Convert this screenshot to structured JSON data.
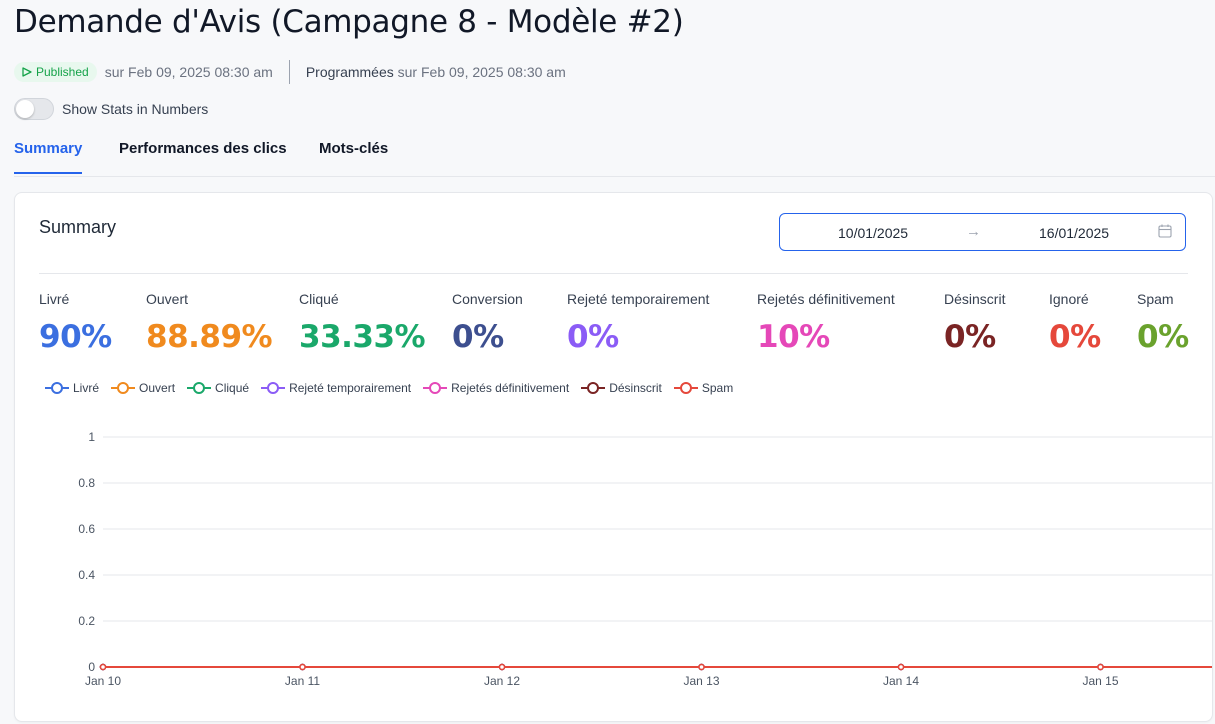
{
  "page": {
    "title": "Demande d'Avis (Campagne 8 - Modèle #2)",
    "status_badge": "Published",
    "published_date": "sur Feb 09, 2025 08:30 am",
    "scheduled_label": "Programmées",
    "scheduled_date": " sur Feb 09, 2025 08:30 am",
    "toggle_label": "Show Stats in Numbers"
  },
  "tabs": [
    {
      "label": "Summary",
      "active": true
    },
    {
      "label": "Performances des clics",
      "active": false
    },
    {
      "label": "Mots-clés",
      "active": false
    }
  ],
  "summary": {
    "title": "Summary",
    "date_start": "10/01/2025",
    "date_end": "16/01/2025",
    "stats": [
      {
        "label": "Livré",
        "value": "90%",
        "color": "#3b6fe0"
      },
      {
        "label": "Ouvert",
        "value": "88.89%",
        "color": "#f08a1e"
      },
      {
        "label": "Cliqué",
        "value": "33.33%",
        "color": "#1aa86a"
      },
      {
        "label": "Conversion",
        "value": "0%",
        "color": "#3d4f8f"
      },
      {
        "label": "Rejeté temporairement",
        "value": "0%",
        "color": "#8b5cf6"
      },
      {
        "label": "Rejetés définitivement",
        "value": "10%",
        "color": "#e548b8"
      },
      {
        "label": "Désinscrit",
        "value": "0%",
        "color": "#7a2424"
      },
      {
        "label": "Ignoré",
        "value": "0%",
        "color": "#e5483b"
      },
      {
        "label": "Spam",
        "value": "0%",
        "color": "#6aa22d"
      }
    ]
  },
  "chart_data": {
    "type": "line",
    "x": [
      "Jan 10",
      "Jan 11",
      "Jan 12",
      "Jan 13",
      "Jan 14",
      "Jan 15"
    ],
    "ylim": [
      0,
      1
    ],
    "yticks": [
      "0",
      "0.2",
      "0.4",
      "0.6",
      "0.8",
      "1"
    ],
    "grid": true,
    "legend_position": "top-left",
    "series": [
      {
        "name": "Livré",
        "color": "#3b6fe0",
        "values": [
          0,
          0,
          0,
          0,
          0,
          0
        ]
      },
      {
        "name": "Ouvert",
        "color": "#f08a1e",
        "values": [
          0,
          0,
          0,
          0,
          0,
          0
        ]
      },
      {
        "name": "Cliqué",
        "color": "#1aa86a",
        "values": [
          0,
          0,
          0,
          0,
          0,
          0
        ]
      },
      {
        "name": "Rejeté temporairement",
        "color": "#8b5cf6",
        "values": [
          0,
          0,
          0,
          0,
          0,
          0
        ]
      },
      {
        "name": "Rejetés définitivement",
        "color": "#e548b8",
        "values": [
          0,
          0,
          0,
          0,
          0,
          0
        ]
      },
      {
        "name": "Désinscrit",
        "color": "#7a2424",
        "values": [
          0,
          0,
          0,
          0,
          0,
          0
        ]
      },
      {
        "name": "Spam",
        "color": "#e5483b",
        "values": [
          0,
          0,
          0,
          0,
          0,
          0
        ]
      }
    ]
  }
}
